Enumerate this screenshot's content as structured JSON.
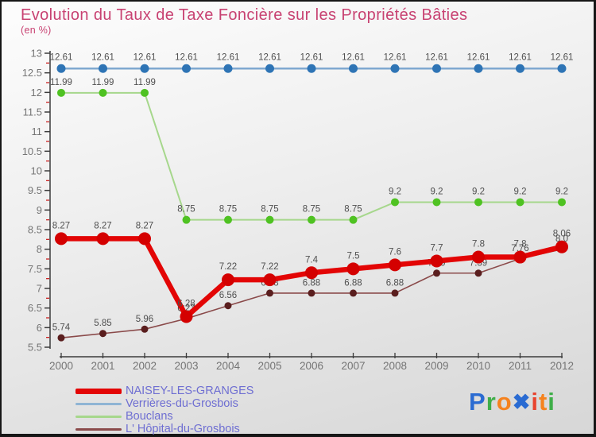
{
  "chart_data": {
    "type": "line",
    "title": "Evolution du Taux de Taxe Foncière sur les Propriétés Bâties",
    "subtitle": "(en %)",
    "x": [
      2000,
      2001,
      2002,
      2003,
      2004,
      2005,
      2006,
      2007,
      2008,
      2009,
      2010,
      2011,
      2012
    ],
    "ylim": [
      5.5,
      13
    ],
    "ytick_step": 0.5,
    "yminor_step": 0.25,
    "grid": false,
    "legend_position": "bottom-left",
    "series": [
      {
        "name": "Verrières-du-Grosbois",
        "line_color": "#7fa8d0",
        "dot_color": "#2e74b5",
        "line_width": 2.4,
        "dot_radius": 5.5,
        "values": [
          12.61,
          12.61,
          12.61,
          12.61,
          12.61,
          12.61,
          12.61,
          12.61,
          12.61,
          12.61,
          12.61,
          12.61,
          12.61
        ],
        "labels": [
          "12.61",
          "12.61",
          "12.61",
          "12.61",
          "12.61",
          "12.61",
          "12.61",
          "12.61",
          "12.61",
          "12.61",
          "12.61",
          "12.61",
          "12.61"
        ]
      },
      {
        "name": "Bouclans",
        "line_color": "#a6d78c",
        "dot_color": "#4fc222",
        "line_width": 2,
        "dot_radius": 5,
        "values": [
          11.99,
          11.99,
          11.99,
          8.75,
          8.75,
          8.75,
          8.75,
          8.75,
          9.2,
          9.2,
          9.2,
          9.2,
          9.2
        ],
        "labels": [
          "11.99",
          "11.99",
          "11.99",
          "8.75",
          "8.75",
          "8.75",
          "8.75",
          "8.75",
          "9.2",
          "9.2",
          "9.2",
          "9.2",
          "9.2"
        ]
      },
      {
        "name": "L' Hôpital-du-Grosbois",
        "line_color": "#8a4a4a",
        "dot_color": "#5a1e1e",
        "line_width": 1.6,
        "dot_radius": 4.5,
        "values": [
          5.74,
          5.85,
          5.96,
          6.23,
          6.56,
          6.88,
          6.88,
          6.88,
          6.88,
          7.39,
          7.39,
          7.76,
          8.0
        ],
        "labels": [
          "5.74",
          "5.85",
          "5.96",
          "6.23",
          "6.56",
          "6.88",
          "6.88",
          "6.88",
          "6.88",
          "7.39",
          "7.39",
          "7.76",
          "8.0"
        ]
      },
      {
        "name": "NAISEY-LES-GRANGES",
        "line_color": "#e30505",
        "dot_color": "#d40000",
        "line_width": 6.5,
        "dot_radius": 8,
        "values": [
          8.27,
          8.27,
          8.27,
          6.28,
          7.22,
          7.22,
          7.4,
          7.5,
          7.6,
          7.7,
          7.8,
          7.8,
          8.06
        ],
        "labels": [
          "8.27",
          "8.27",
          "8.27",
          "6.28",
          "7.22",
          "7.22",
          "7.4",
          "7.5",
          "7.6",
          "7.7",
          "7.8",
          "7.8",
          "8.06"
        ]
      }
    ]
  },
  "legend": {
    "items": [
      {
        "label": "NAISEY-LES-GRANGES",
        "color": "#e30505",
        "thickness": 7
      },
      {
        "label": "Verrières-du-Grosbois",
        "color": "#8fb4d4",
        "thickness": 3
      },
      {
        "label": "Bouclans",
        "color": "#a6d78c",
        "thickness": 3
      },
      {
        "label": "L' Hôpital-du-Grosbois",
        "color": "#8a4a4a",
        "thickness": 3
      }
    ]
  },
  "logo": {
    "text": "Proxiti",
    "letters": [
      {
        "ch": "P",
        "color": "#2a6bd2"
      },
      {
        "ch": "r",
        "color": "#3fae49"
      },
      {
        "ch": "o",
        "color": "#f5821e"
      },
      {
        "ch": "✖",
        "color": "#2a6bd2"
      },
      {
        "ch": "i",
        "color": "#e8432e"
      },
      {
        "ch": "t",
        "color": "#f5821e"
      },
      {
        "ch": "i",
        "color": "#3fae49"
      }
    ]
  },
  "colors": {
    "title": "#c84272",
    "legend_text": "#6e6ed2",
    "axis": "#3c3c3c",
    "tick_minor": "#cc2222",
    "data_label": "#4f4f4f",
    "tick_label": "#757575"
  }
}
